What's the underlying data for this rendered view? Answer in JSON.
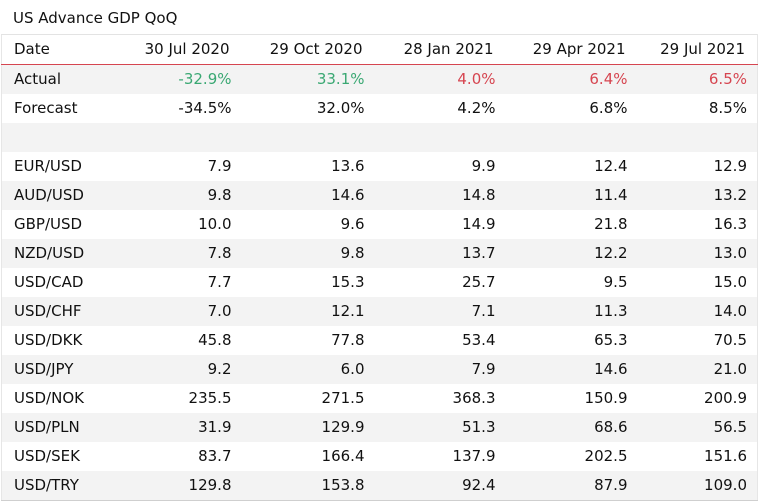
{
  "title": "US Advance GDP QoQ",
  "header": {
    "label": "Date",
    "dates": [
      "30 Jul 2020",
      "29 Oct 2020",
      "28 Jan 2021",
      "29 Apr 2021",
      "29 Jul 2021"
    ]
  },
  "actual": {
    "label": "Actual",
    "values": [
      "-32.9%",
      "33.1%",
      "4.0%",
      "6.4%",
      "6.5%"
    ],
    "colors": [
      "#3aa873",
      "#3aa873",
      "#d64550",
      "#d64550",
      "#d64550"
    ]
  },
  "forecast": {
    "label": "Forecast",
    "values": [
      "-34.5%",
      "32.0%",
      "4.2%",
      "6.8%",
      "8.5%"
    ]
  },
  "pairs": [
    {
      "label": "EUR/USD",
      "values": [
        "7.9",
        "13.6",
        "9.9",
        "12.4",
        "12.9"
      ]
    },
    {
      "label": "AUD/USD",
      "values": [
        "9.8",
        "14.6",
        "14.8",
        "11.4",
        "13.2"
      ]
    },
    {
      "label": "GBP/USD",
      "values": [
        "10.0",
        "9.6",
        "14.9",
        "21.8",
        "16.3"
      ]
    },
    {
      "label": "NZD/USD",
      "values": [
        "7.8",
        "9.8",
        "13.7",
        "12.2",
        "13.0"
      ]
    },
    {
      "label": "USD/CAD",
      "values": [
        "7.7",
        "15.3",
        "25.7",
        "9.5",
        "15.0"
      ]
    },
    {
      "label": "USD/CHF",
      "values": [
        "7.0",
        "12.1",
        "7.1",
        "11.3",
        "14.0"
      ]
    },
    {
      "label": "USD/DKK",
      "values": [
        "45.8",
        "77.8",
        "53.4",
        "65.3",
        "70.5"
      ]
    },
    {
      "label": "USD/JPY",
      "values": [
        "9.2",
        "6.0",
        "7.9",
        "14.6",
        "21.0"
      ]
    },
    {
      "label": "USD/NOK",
      "values": [
        "235.5",
        "271.5",
        "368.3",
        "150.9",
        "200.9"
      ]
    },
    {
      "label": "USD/PLN",
      "values": [
        "31.9",
        "129.9",
        "51.3",
        "68.6",
        "56.5"
      ]
    },
    {
      "label": "USD/SEK",
      "values": [
        "83.7",
        "166.4",
        "137.9",
        "202.5",
        "151.6"
      ]
    },
    {
      "label": "USD/TRY",
      "values": [
        "129.8",
        "153.8",
        "92.4",
        "87.9",
        "109.0"
      ]
    }
  ]
}
